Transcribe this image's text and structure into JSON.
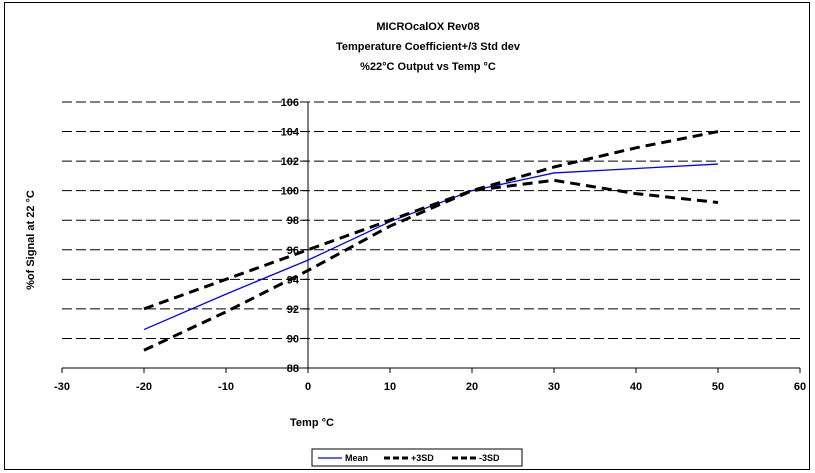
{
  "chart_data": {
    "type": "line",
    "title_lines": [
      "MICROcalOX Rev08",
      "Temperature Coefficient+/3 Std dev",
      "%22°C Output vs Temp °C"
    ],
    "xlabel": "Temp °C",
    "ylabel": "%of Signal at 22 °C",
    "xlim": [
      -30,
      60
    ],
    "ylim": [
      88,
      106
    ],
    "x_ticks": [
      -30,
      -20,
      -10,
      0,
      10,
      20,
      30,
      40,
      50,
      60
    ],
    "x_tick_labels": [
      "-30",
      "-20",
      "-10",
      "0",
      "10",
      "20",
      "30",
      "40",
      "50",
      "60"
    ],
    "y_ticks": [
      88,
      90,
      92,
      94,
      96,
      98,
      100,
      102,
      104,
      106
    ],
    "y_tick_labels": [
      "88",
      "90",
      "92",
      "94",
      "96",
      "98",
      "100",
      "102",
      "104",
      "106"
    ],
    "grid": "horizontal dashed",
    "legend_position": "bottom",
    "series": [
      {
        "name": "Mean",
        "color": "#0000ff",
        "style": "solid",
        "x": [
          -20,
          -10,
          0,
          10,
          20,
          30,
          40,
          50
        ],
        "y": [
          90.6,
          93.0,
          95.3,
          97.9,
          100.0,
          101.2,
          101.5,
          101.8
        ]
      },
      {
        "name": "+3SD",
        "color": "#000000",
        "style": "dashed",
        "x": [
          -20,
          -10,
          0,
          10,
          20,
          30,
          40,
          50
        ],
        "y": [
          92.0,
          94.0,
          96.0,
          98.0,
          100.0,
          101.6,
          102.9,
          104.0
        ]
      },
      {
        "name": "-3SD",
        "color": "#000000",
        "style": "dashed",
        "x": [
          -20,
          -10,
          0,
          10,
          20,
          30,
          40,
          50
        ],
        "y": [
          89.2,
          91.8,
          94.6,
          97.6,
          100.0,
          100.7,
          99.8,
          99.2
        ]
      }
    ]
  }
}
